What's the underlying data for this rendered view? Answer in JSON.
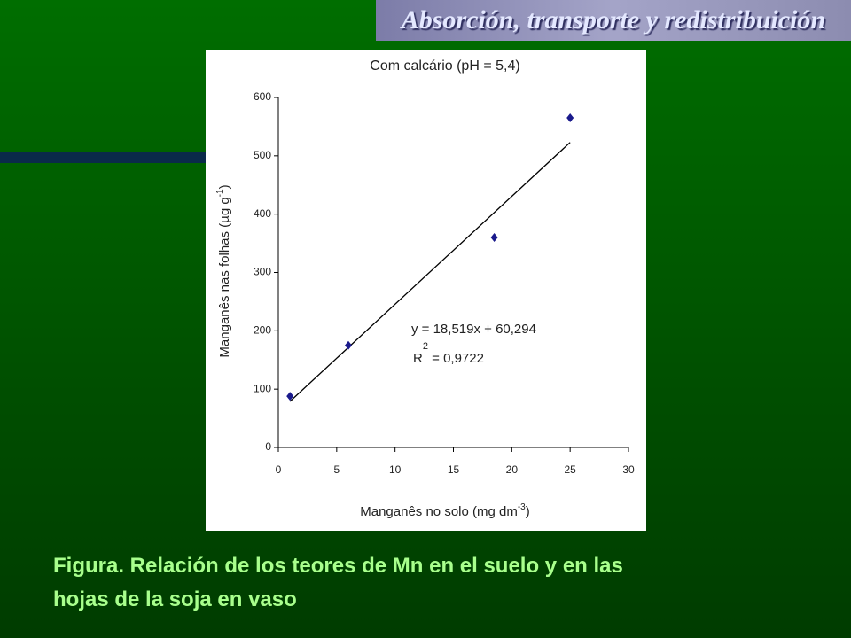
{
  "slide_title": "Absorción, transporte y redistribuición",
  "chart_data": {
    "type": "scatter",
    "title": "Com calcário (pH = 5,4)",
    "x_label": {
      "text": "Manganês no solo (mg dm",
      "sup": "-3",
      "end": ")"
    },
    "y_label": {
      "text": "Manganês nas folhas (µg g",
      "sup": "-1",
      "end": ")"
    },
    "series": [
      {
        "name": "Mn",
        "color": "#1a1a8c",
        "x": [
          1,
          6,
          18.5,
          25
        ],
        "values": [
          88,
          175,
          360,
          565
        ]
      }
    ],
    "trendline": {
      "color": "#000000",
      "x": [
        1,
        25
      ],
      "values": [
        79,
        523
      ]
    },
    "equation": "y = 18,519x + 60,294",
    "r2": {
      "text": "R",
      "sup": "2",
      "rest": " = 0,9722"
    },
    "xlim": [
      0,
      30
    ],
    "xticks": [
      0,
      5,
      10,
      15,
      20,
      25,
      30
    ],
    "ylim": [
      0,
      600
    ],
    "yticks": [
      0,
      100,
      200,
      300,
      400,
      500,
      600
    ]
  },
  "caption": [
    "Figura. Relación de los teores de Mn en el suelo y en las",
    "hojas de la soja en vaso"
  ]
}
